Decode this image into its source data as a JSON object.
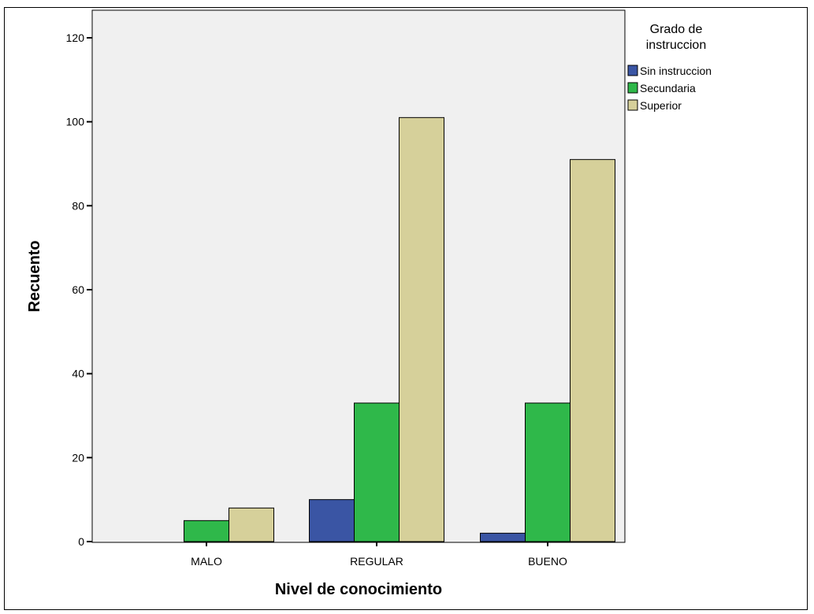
{
  "chart_data": {
    "type": "bar",
    "categories": [
      "MALO",
      "REGULAR",
      "BUENO"
    ],
    "series": [
      {
        "name": "Sin instruccion",
        "values": [
          0,
          10,
          2
        ],
        "color": "#3a55a4"
      },
      {
        "name": "Secundaria",
        "values": [
          5,
          33,
          33
        ],
        "color": "#2fb84a"
      },
      {
        "name": "Superior",
        "values": [
          8,
          101,
          91
        ],
        "color": "#d6d09a"
      }
    ],
    "xlabel": "Nivel de conocimiento",
    "ylabel": "Recuento",
    "ylim": [
      0,
      120
    ],
    "yticks": [
      0,
      20,
      40,
      60,
      80,
      100,
      120
    ],
    "grid": false,
    "legend": {
      "title_line1": "Grado de",
      "title_line2": "instruccion",
      "placement": "right"
    },
    "plot_background": "#f0f0f0"
  }
}
